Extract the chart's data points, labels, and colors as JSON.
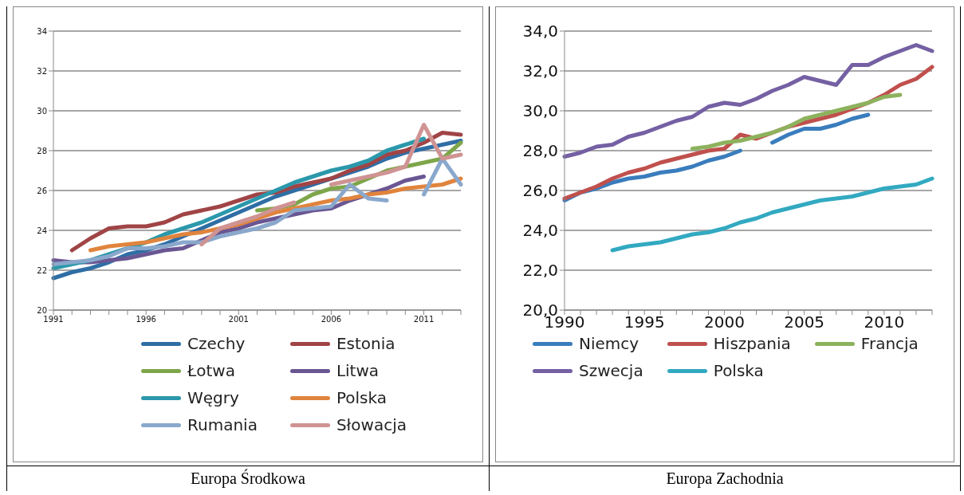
{
  "chart_data": [
    {
      "type": "line",
      "title": "Europa Środkowa",
      "categories": [
        "1991",
        null,
        null,
        null,
        null,
        "1996",
        null,
        null,
        null,
        null,
        "2001",
        null,
        null,
        null,
        null,
        "2006",
        null,
        null,
        null,
        null,
        "2011",
        null,
        null
      ],
      "ylim": [
        20,
        34
      ],
      "yticks": [
        20,
        22,
        24,
        26,
        28,
        30,
        32,
        34
      ],
      "grid": "y",
      "legend": "bottom",
      "marker": "none",
      "series": [
        {
          "name": "Czechy",
          "color": "#2f6ea5",
          "values": [
            21.6,
            21.9,
            22.1,
            22.4,
            22.8,
            23.0,
            23.3,
            23.7,
            24.1,
            24.5,
            24.9,
            25.3,
            25.7,
            26.0,
            26.3,
            26.6,
            26.9,
            27.2,
            27.6,
            27.9,
            28.1,
            28.3,
            28.5
          ]
        },
        {
          "name": "Estonia",
          "color": "#a04446",
          "values": [
            null,
            23.0,
            23.6,
            24.1,
            24.2,
            24.2,
            24.4,
            24.8,
            25.0,
            25.2,
            25.5,
            25.8,
            25.9,
            26.2,
            26.4,
            26.6,
            27.0,
            27.3,
            27.8,
            28.0,
            28.4,
            28.9,
            28.8
          ]
        },
        {
          "name": "Łotwa",
          "color": "#7ea64a",
          "values": [
            null,
            null,
            null,
            null,
            null,
            null,
            null,
            null,
            null,
            null,
            null,
            25.0,
            25.1,
            25.3,
            25.8,
            26.1,
            26.2,
            26.6,
            27.0,
            27.2,
            27.4,
            27.6,
            28.4
          ]
        },
        {
          "name": "Litwa",
          "color": "#6a5693",
          "values": [
            22.5,
            22.4,
            22.4,
            22.5,
            22.6,
            22.8,
            23.0,
            23.1,
            23.5,
            23.9,
            24.1,
            24.4,
            24.6,
            24.8,
            25.0,
            25.1,
            25.5,
            25.8,
            26.1,
            26.5,
            26.7,
            null,
            null
          ]
        },
        {
          "name": "Węgry",
          "color": "#2b98ab",
          "values": [
            22.1,
            22.3,
            22.5,
            22.8,
            23.1,
            23.4,
            23.8,
            24.1,
            24.4,
            24.8,
            25.2,
            25.6,
            26.0,
            26.4,
            26.7,
            27.0,
            27.2,
            27.5,
            28.0,
            28.3,
            28.6,
            null,
            null
          ]
        },
        {
          "name": "Polska",
          "color": "#e0843d",
          "values": [
            null,
            null,
            23.0,
            23.2,
            23.3,
            23.4,
            23.6,
            23.8,
            23.9,
            24.1,
            24.3,
            24.6,
            24.9,
            25.1,
            25.3,
            25.5,
            25.6,
            25.8,
            25.9,
            26.1,
            26.2,
            26.3,
            26.6
          ]
        },
        {
          "name": "Rumania",
          "color": "#8aa8cc",
          "values": [
            22.3,
            22.4,
            22.5,
            22.7,
            23.1,
            23.1,
            23.2,
            23.4,
            23.4,
            23.7,
            23.9,
            24.1,
            24.4,
            25.0,
            25.1,
            25.2,
            26.3,
            25.6,
            25.5,
            null,
            25.8,
            27.6,
            26.3
          ]
        },
        {
          "name": "Słowacja",
          "color": "#d09393",
          "values": [
            null,
            null,
            null,
            null,
            null,
            null,
            null,
            null,
            23.3,
            24.1,
            24.4,
            24.7,
            25.1,
            25.4,
            null,
            26.3,
            26.5,
            26.7,
            26.9,
            27.2,
            29.3,
            27.6,
            27.8
          ]
        }
      ]
    },
    {
      "type": "line",
      "title": "Europa Zachodnia",
      "categories": [
        "1990",
        null,
        null,
        null,
        null,
        "1995",
        null,
        null,
        null,
        null,
        "2000",
        null,
        null,
        null,
        null,
        "2005",
        null,
        null,
        null,
        null,
        "2010",
        null,
        null,
        null
      ],
      "ylim": [
        20,
        34
      ],
      "yticks": [
        {
          "value": 20,
          "label": "20,0"
        },
        {
          "value": 22,
          "label": "22,0"
        },
        {
          "value": 24,
          "label": "24,0"
        },
        {
          "value": 26,
          "label": "26,0"
        },
        {
          "value": 28,
          "label": "28,0"
        },
        {
          "value": 30,
          "label": "30,0"
        },
        {
          "value": 32,
          "label": "32,0"
        },
        {
          "value": 34,
          "label": "34,0"
        }
      ],
      "grid": "y",
      "legend": "bottom",
      "marker": "none",
      "series": [
        {
          "name": "Niemcy",
          "color": "#3a7dbd",
          "values": [
            25.5,
            25.9,
            26.1,
            26.4,
            26.6,
            26.7,
            26.9,
            27.0,
            27.2,
            27.5,
            27.7,
            28.0,
            null,
            28.4,
            28.8,
            29.1,
            29.1,
            29.3,
            29.6,
            29.8,
            null,
            null,
            null,
            null
          ]
        },
        {
          "name": "Hiszpania",
          "color": "#c0504d",
          "values": [
            25.6,
            25.9,
            26.2,
            26.6,
            26.9,
            27.1,
            27.4,
            27.6,
            27.8,
            28.0,
            28.1,
            28.8,
            28.6,
            28.9,
            29.2,
            29.4,
            29.6,
            29.8,
            30.1,
            30.4,
            30.8,
            31.3,
            31.6,
            32.2
          ]
        },
        {
          "name": "Francja",
          "color": "#8db25d",
          "values": [
            null,
            null,
            null,
            null,
            null,
            null,
            null,
            null,
            28.1,
            28.2,
            28.4,
            28.5,
            28.7,
            28.9,
            29.2,
            29.6,
            29.8,
            30.0,
            30.2,
            30.4,
            30.7,
            30.8,
            null,
            null
          ]
        },
        {
          "name": "Szwecja",
          "color": "#7460a3",
          "values": [
            27.7,
            27.9,
            28.2,
            28.3,
            28.7,
            28.9,
            29.2,
            29.5,
            29.7,
            30.2,
            30.4,
            30.3,
            30.6,
            31.0,
            31.3,
            31.7,
            31.5,
            31.3,
            32.3,
            32.3,
            32.7,
            33.0,
            33.3,
            33.0
          ]
        },
        {
          "name": "Polska",
          "color": "#32a9c1",
          "values": [
            null,
            null,
            null,
            23.0,
            23.2,
            23.3,
            23.4,
            23.6,
            23.8,
            23.9,
            24.1,
            24.4,
            24.6,
            24.9,
            25.1,
            25.3,
            25.5,
            25.6,
            25.7,
            25.9,
            26.1,
            26.2,
            26.3,
            26.6
          ]
        }
      ]
    }
  ]
}
